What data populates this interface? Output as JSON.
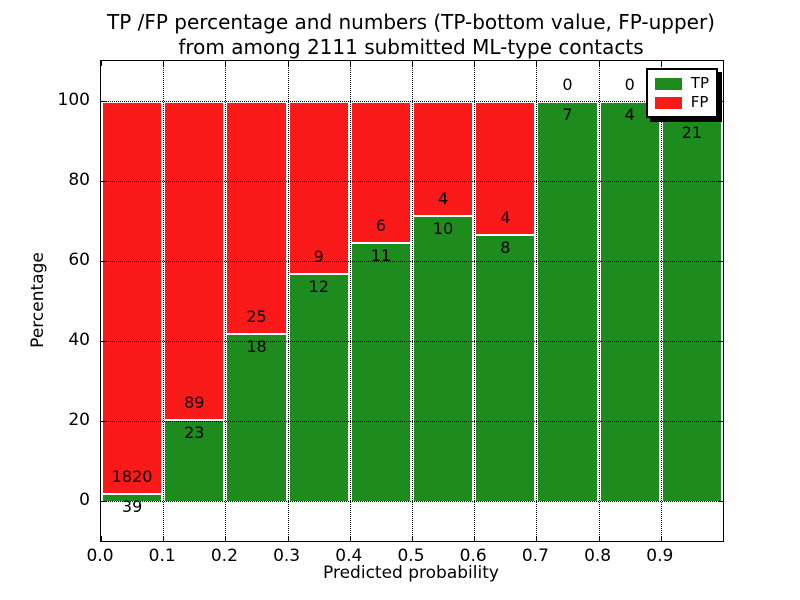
{
  "title": {
    "line1": "TP /FP percentage and numbers (TP-bottom value, FP-upper)",
    "line2": "from among 2111 submitted ML-type contacts"
  },
  "axes": {
    "xlabel": "Predicted probability",
    "ylabel": "Percentage",
    "xtick_labels": [
      "0.0",
      "0.1",
      "0.2",
      "0.3",
      "0.4",
      "0.5",
      "0.6",
      "0.7",
      "0.8",
      "0.9"
    ],
    "ytick_labels": [
      "0",
      "20",
      "40",
      "60",
      "80",
      "100"
    ],
    "xlim": [
      0.0,
      1.0
    ],
    "ylim": [
      -10,
      110
    ],
    "grid": "dotted black, both axes"
  },
  "legend": {
    "position": "upper right",
    "items": [
      {
        "label": "TP",
        "color": "#1e8b1e",
        "swatch": "tp-swatch"
      },
      {
        "label": "FP",
        "color": "#fb1a1a",
        "swatch": "fp-swatch"
      }
    ]
  },
  "colors": {
    "tp_green": "#1e8b1e",
    "fp_red": "#fb1a1a",
    "bar_edge": "#ffffff",
    "frame": "#000000",
    "background": "#ffffff"
  },
  "chart_data": {
    "type": "bar",
    "stacked": true,
    "normalized_to_percent": 100,
    "total_submitted": 2111,
    "series_names": [
      "TP",
      "FP"
    ],
    "bins": [
      {
        "range": "0.0-0.1",
        "tp": 39,
        "fp": 1820,
        "tp_label": "39",
        "fp_label": "1820",
        "tp_pct": 2.1
      },
      {
        "range": "0.1-0.2",
        "tp": 23,
        "fp": 89,
        "tp_label": "23",
        "fp_label": "89",
        "tp_pct": 20.5
      },
      {
        "range": "0.2-0.3",
        "tp": 18,
        "fp": 25,
        "tp_label": "18",
        "fp_label": "25",
        "tp_pct": 41.9
      },
      {
        "range": "0.3-0.4",
        "tp": 12,
        "fp": 9,
        "tp_label": "12",
        "fp_label": "9",
        "tp_pct": 57.1
      },
      {
        "range": "0.4-0.5",
        "tp": 11,
        "fp": 6,
        "tp_label": "11",
        "fp_label": "6",
        "tp_pct": 64.7
      },
      {
        "range": "0.5-0.6",
        "tp": 10,
        "fp": 4,
        "tp_label": "10",
        "fp_label": "4",
        "tp_pct": 71.4
      },
      {
        "range": "0.6-0.7",
        "tp": 8,
        "fp": 4,
        "tp_label": "8",
        "fp_label": "4",
        "tp_pct": 66.7
      },
      {
        "range": "0.7-0.8",
        "tp": 7,
        "fp": 0,
        "tp_label": "7",
        "fp_label": "0",
        "tp_pct": 100
      },
      {
        "range": "0.8-0.9",
        "tp": 4,
        "fp": 0,
        "tp_label": "4",
        "fp_label": "0",
        "tp_pct": 100
      },
      {
        "range": "0.9-1.0",
        "tp": 21,
        "fp": null,
        "tp_label": "21",
        "fp_label": "",
        "tp_pct": 95.5
      }
    ]
  }
}
